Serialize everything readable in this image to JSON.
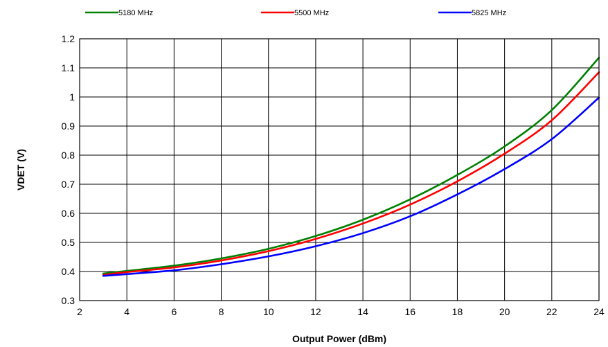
{
  "chart_data": {
    "type": "line",
    "title": "",
    "xlabel": "Output Power (dBm)",
    "ylabel": "VDET (V)",
    "xlim": [
      2,
      24
    ],
    "ylim": [
      0.3,
      1.2
    ],
    "x_ticks": [
      "2",
      "4",
      "6",
      "8",
      "10",
      "12",
      "14",
      "16",
      "18",
      "20",
      "22",
      "24"
    ],
    "y_ticks": [
      "1.2",
      "1.1",
      "1",
      "0.9",
      "0.8",
      "0.7",
      "0.6",
      "0.5",
      "0.4",
      "0.3"
    ],
    "grid": true,
    "legend_position": "top",
    "series": [
      {
        "name": "5180 MHz",
        "color": "#008000",
        "x": [
          3,
          4,
          6,
          8,
          10,
          12,
          14,
          16,
          18,
          20,
          22,
          24
        ],
        "y": [
          0.393,
          0.402,
          0.42,
          0.445,
          0.478,
          0.522,
          0.578,
          0.648,
          0.732,
          0.83,
          0.955,
          1.135
        ]
      },
      {
        "name": "5500 MHz",
        "color": "#ff0000",
        "x": [
          3,
          4,
          6,
          8,
          10,
          12,
          14,
          16,
          18,
          20,
          22,
          24
        ],
        "y": [
          0.388,
          0.398,
          0.414,
          0.438,
          0.47,
          0.512,
          0.565,
          0.63,
          0.71,
          0.805,
          0.92,
          1.085
        ]
      },
      {
        "name": "5825 MHz",
        "color": "#0000ff",
        "x": [
          3,
          4,
          6,
          8,
          10,
          12,
          14,
          16,
          18,
          20,
          22,
          24
        ],
        "y": [
          0.385,
          0.391,
          0.404,
          0.425,
          0.452,
          0.487,
          0.532,
          0.59,
          0.665,
          0.752,
          0.855,
          0.998
        ]
      }
    ]
  }
}
